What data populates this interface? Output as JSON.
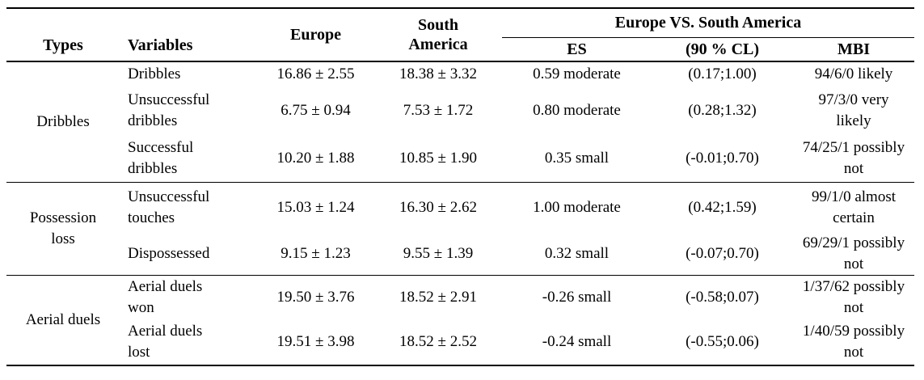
{
  "table": {
    "headers": {
      "types": "Types",
      "variables": "Variables",
      "europe": "Europe",
      "south_america": "South America",
      "spanner": "Europe VS. South America",
      "es": "ES",
      "cl": "(90 % CL)",
      "mbi": "MBI"
    },
    "groups": [
      {
        "type": "Dribbles",
        "rows": [
          {
            "variable": "Dribbles",
            "europe": "16.86 ± 2.55",
            "south_america": "18.38 ± 3.32",
            "es": "0.59 moderate",
            "cl": "(0.17;1.00)",
            "mbi": "94/6/0 likely"
          },
          {
            "variable": "Unsuccessful dribbles",
            "europe": "6.75 ± 0.94",
            "south_america": "7.53 ± 1.72",
            "es": "0.80 moderate",
            "cl": "(0.28;1.32)",
            "mbi": "97/3/0 very likely"
          },
          {
            "variable": "Successful dribbles",
            "europe": "10.20 ± 1.88",
            "south_america": "10.85 ± 1.90",
            "es": "0.35 small",
            "cl": "(-0.01;0.70)",
            "mbi": "74/25/1 possibly not"
          }
        ]
      },
      {
        "type": "Possession loss",
        "rows": [
          {
            "variable": "Unsuccessful touches",
            "europe": "15.03 ± 1.24",
            "south_america": "16.30 ± 2.62",
            "es": "1.00 moderate",
            "cl": "(0.42;1.59)",
            "mbi": "99/1/0 almost certain"
          },
          {
            "variable": "Dispossessed",
            "europe": "9.15 ± 1.23",
            "south_america": "9.55 ± 1.39",
            "es": "0.32 small",
            "cl": "(-0.07;0.70)",
            "mbi": "69/29/1 possibly not"
          }
        ]
      },
      {
        "type": "Aerial duels",
        "rows": [
          {
            "variable": "Aerial duels won",
            "europe": "19.50 ± 3.76",
            "south_america": "18.52 ± 2.91",
            "es": "-0.26 small",
            "cl": "(-0.58;0.07)",
            "mbi": "1/37/62 possibly not"
          },
          {
            "variable": "Aerial duels lost",
            "europe": "19.51 ± 3.98",
            "south_america": "18.52 ± 2.52",
            "es": "-0.24 small",
            "cl": "(-0.55;0.06)",
            "mbi": "1/40/59 possibly not"
          }
        ]
      }
    ]
  }
}
